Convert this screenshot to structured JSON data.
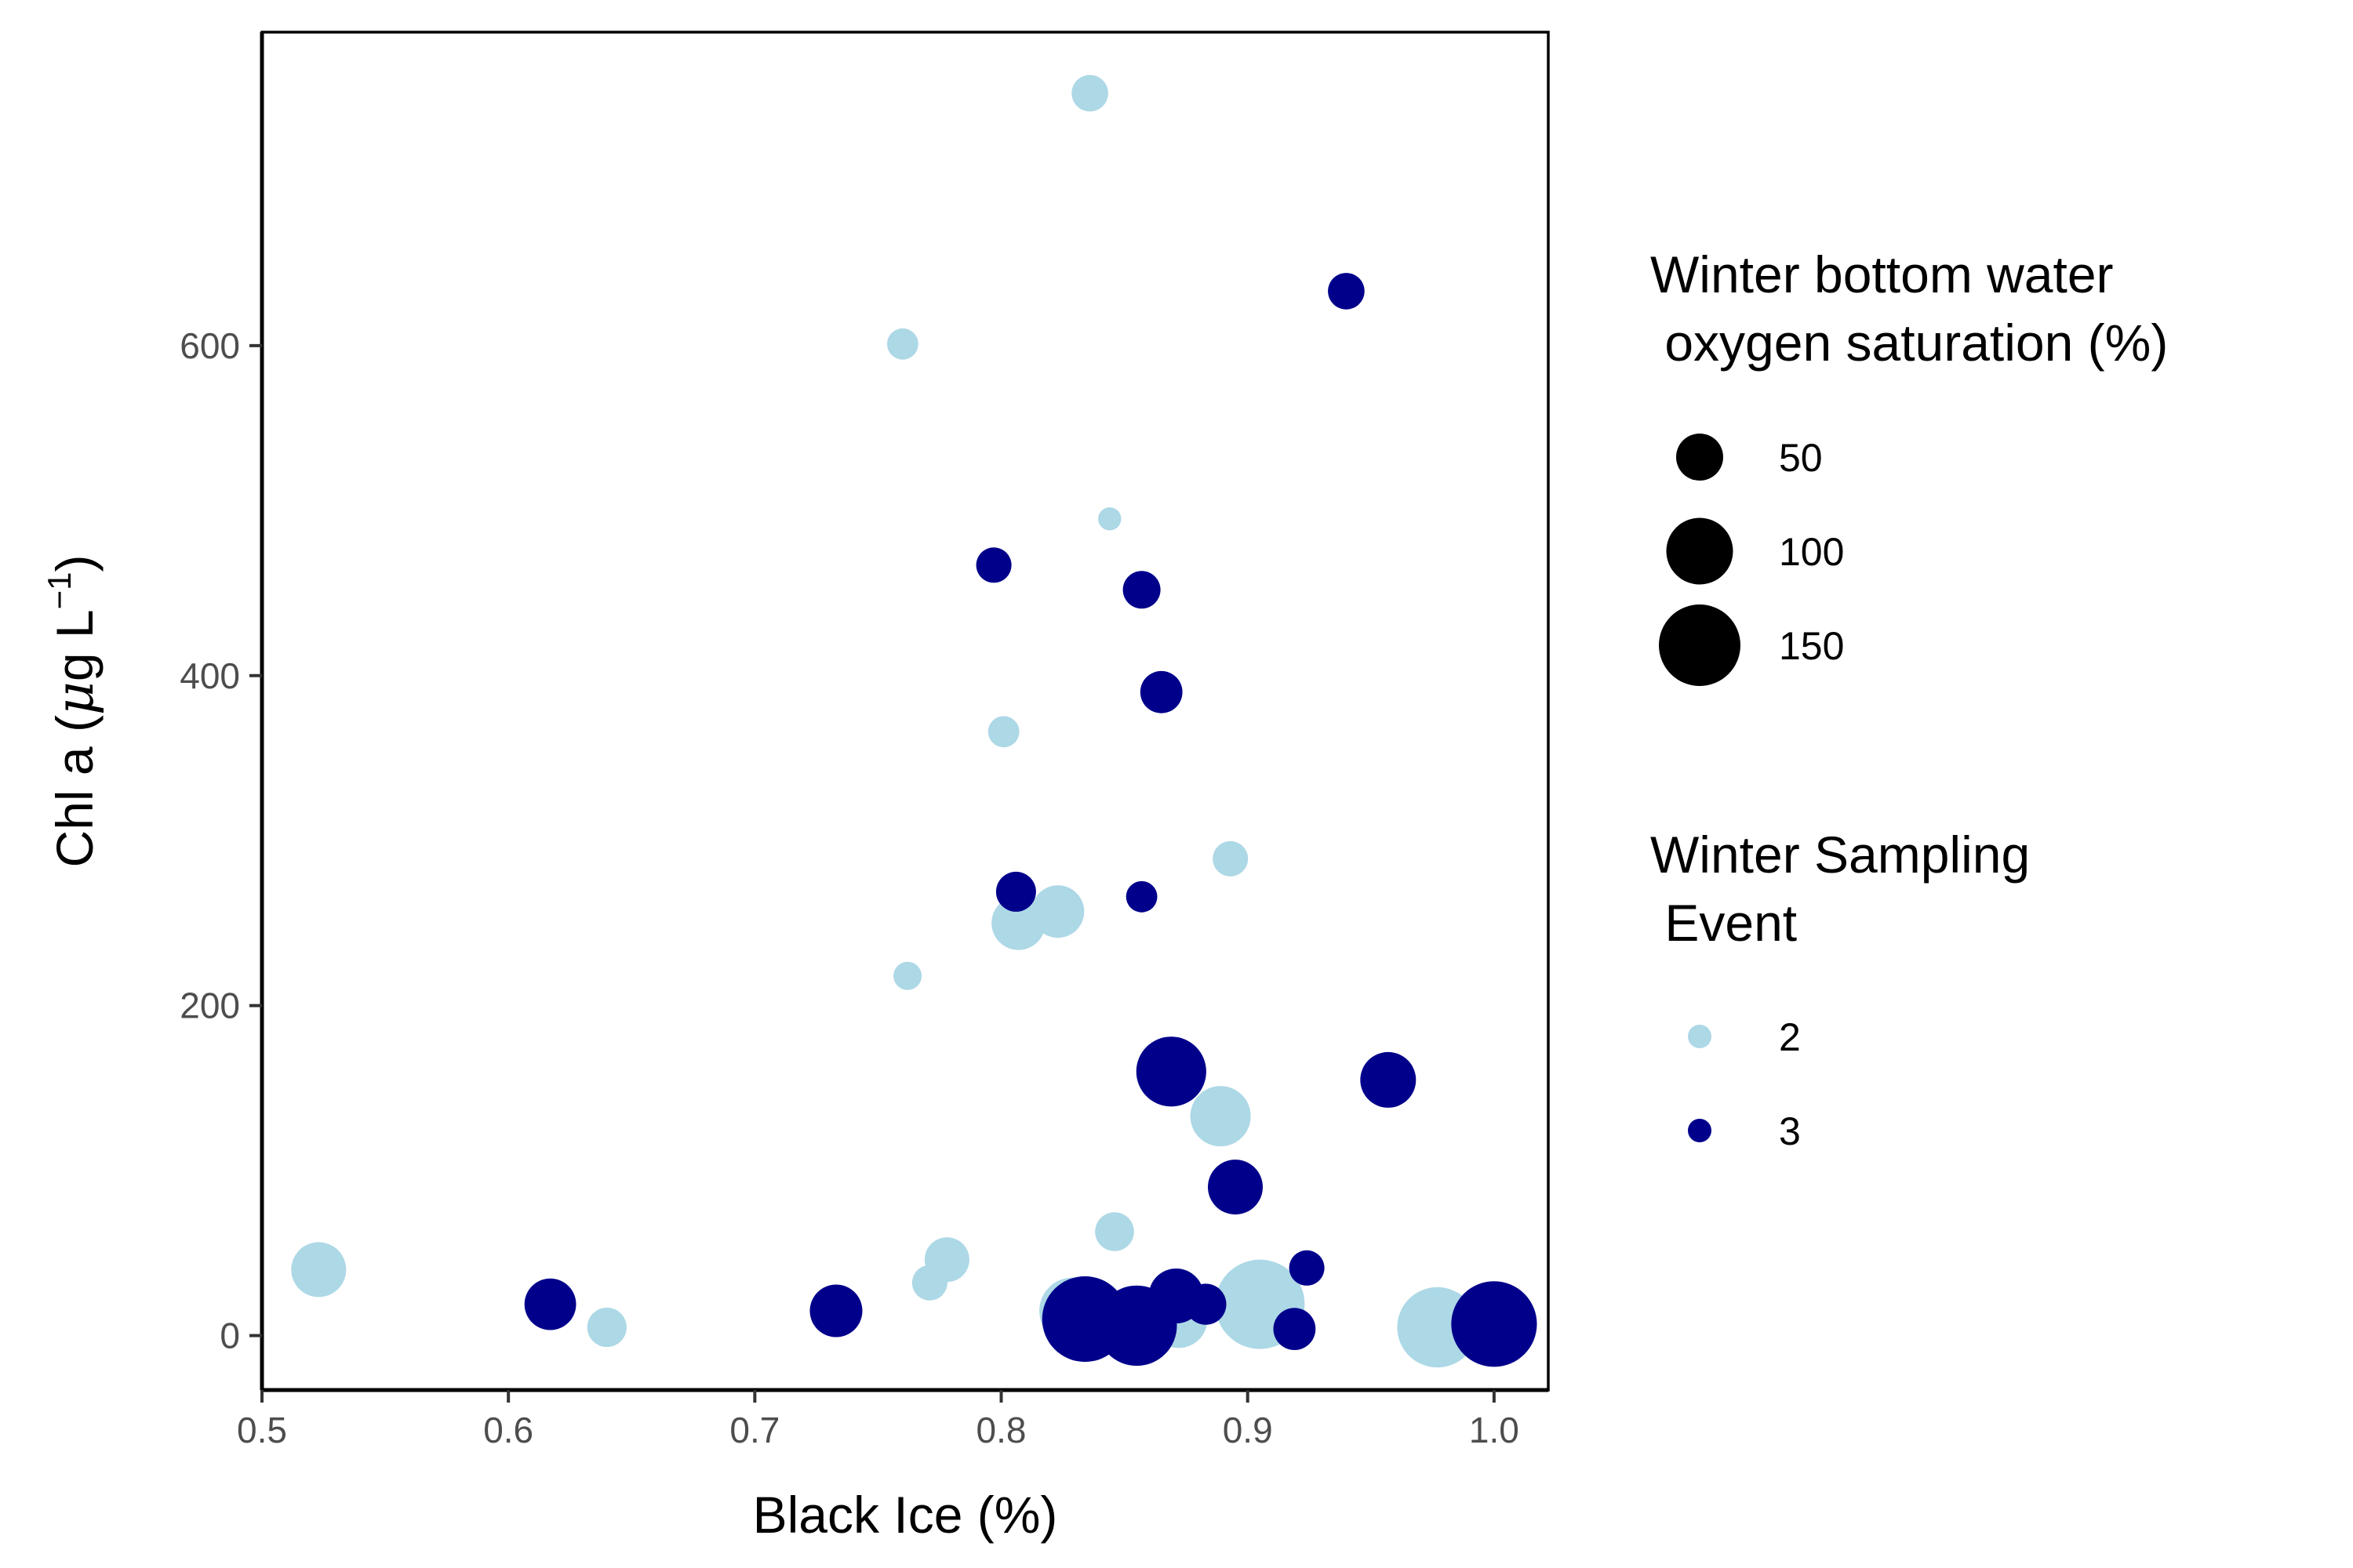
{
  "chart_data": {
    "type": "scatter",
    "title": "",
    "xlabel": "Black Ice (%)",
    "ylabel": {
      "prefix": "Chl a (",
      "mu": "μ",
      "unit": "g L",
      "exp": "−1",
      "suffix": ")"
    },
    "xlim": [
      0.5,
      1.022
    ],
    "ylim": [
      -33,
      790
    ],
    "xticks": [
      0.5,
      0.6,
      0.7,
      0.8,
      0.9,
      1.0
    ],
    "xtick_labels": [
      "0.5",
      "0.6",
      "0.7",
      "0.8",
      "0.9",
      "1.0"
    ],
    "yticks": [
      0,
      200,
      400,
      600
    ],
    "ytick_labels": [
      "0",
      "200",
      "400",
      "600"
    ],
    "grid": false,
    "legend_placement": "right",
    "size_legend": {
      "title_lines": [
        "Winter bottom water",
        " oxygen saturation (%)"
      ],
      "values": [
        50,
        100,
        150
      ],
      "labels": [
        "50",
        "100",
        "150"
      ]
    },
    "color_legend": {
      "title_lines": [
        "Winter Sampling",
        " Event"
      ],
      "entries": [
        {
          "label": "2",
          "color": "#add8e6"
        },
        {
          "label": "3",
          "color": "#00008b"
        }
      ]
    },
    "series": [
      {
        "name": "2",
        "color": "#add8e6",
        "points": [
          {
            "x": 0.836,
            "y": 753,
            "o2": 30
          },
          {
            "x": 0.76,
            "y": 601,
            "o2": 22
          },
          {
            "x": 0.844,
            "y": 495,
            "o2": 12
          },
          {
            "x": 0.801,
            "y": 366,
            "o2": 22
          },
          {
            "x": 0.893,
            "y": 289,
            "o2": 28
          },
          {
            "x": 0.823,
            "y": 257,
            "o2": 62
          },
          {
            "x": 0.807,
            "y": 250,
            "o2": 65
          },
          {
            "x": 0.762,
            "y": 218,
            "o2": 18
          },
          {
            "x": 0.889,
            "y": 133,
            "o2": 82
          },
          {
            "x": 0.846,
            "y": 63,
            "o2": 34
          },
          {
            "x": 0.778,
            "y": 46,
            "o2": 45
          },
          {
            "x": 0.771,
            "y": 32,
            "o2": 28
          },
          {
            "x": 0.523,
            "y": 40,
            "o2": 68
          },
          {
            "x": 0.64,
            "y": 5,
            "o2": 35
          },
          {
            "x": 0.872,
            "y": 10,
            "o2": 75
          },
          {
            "x": 0.829,
            "y": 15,
            "o2": 100
          },
          {
            "x": 0.905,
            "y": 19,
            "o2": 180
          },
          {
            "x": 0.977,
            "y": 5,
            "o2": 145
          }
        ]
      },
      {
        "name": "3",
        "color": "#00008b",
        "points": [
          {
            "x": 0.94,
            "y": 633,
            "o2": 30
          },
          {
            "x": 0.797,
            "y": 467,
            "o2": 28
          },
          {
            "x": 0.857,
            "y": 452,
            "o2": 32
          },
          {
            "x": 0.865,
            "y": 390,
            "o2": 40
          },
          {
            "x": 0.806,
            "y": 269,
            "o2": 36
          },
          {
            "x": 0.857,
            "y": 266,
            "o2": 22
          },
          {
            "x": 0.869,
            "y": 160,
            "o2": 110
          },
          {
            "x": 0.957,
            "y": 155,
            "o2": 70
          },
          {
            "x": 0.895,
            "y": 90,
            "o2": 68
          },
          {
            "x": 0.924,
            "y": 41,
            "o2": 28
          },
          {
            "x": 0.617,
            "y": 19,
            "o2": 60
          },
          {
            "x": 0.733,
            "y": 15,
            "o2": 62
          },
          {
            "x": 0.871,
            "y": 24,
            "o2": 68
          },
          {
            "x": 0.883,
            "y": 19,
            "o2": 38
          },
          {
            "x": 0.919,
            "y": 4,
            "o2": 40
          },
          {
            "x": 0.834,
            "y": 10,
            "o2": 165
          },
          {
            "x": 0.855,
            "y": 6,
            "o2": 145
          },
          {
            "x": 1.0,
            "y": 7,
            "o2": 165
          }
        ]
      }
    ]
  }
}
